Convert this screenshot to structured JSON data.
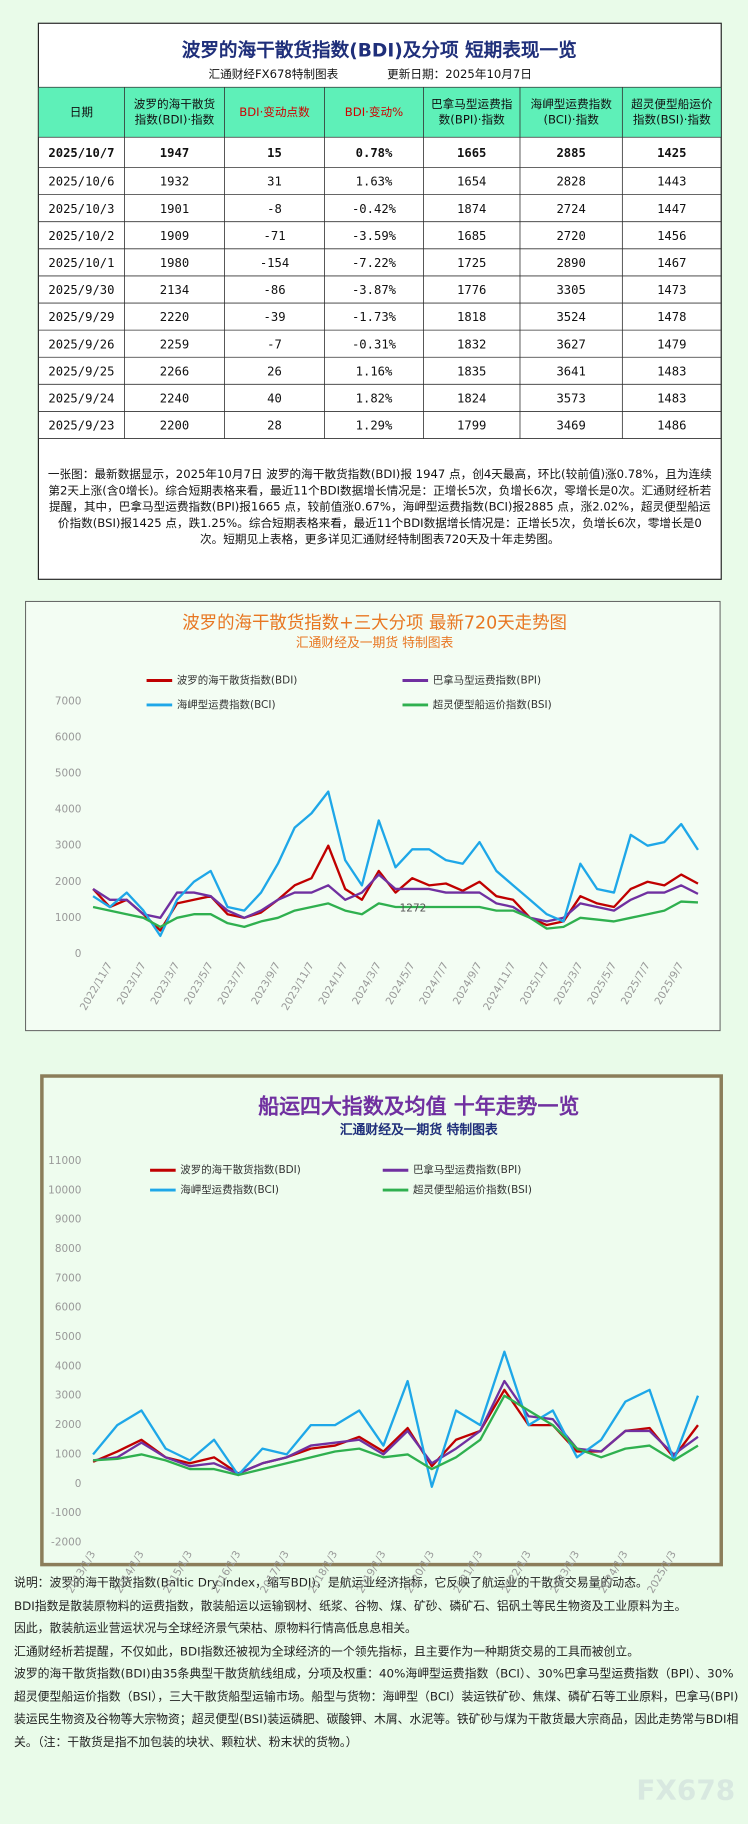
{
  "table": {
    "title": "波罗的海干散货指数(BDI)及分项 短期表现一览",
    "source": "汇通财经FX678特制图表",
    "date": "更新日期：2025年10月7日",
    "header": [
      [
        "日期"
      ],
      [
        "波罗的海干散货",
        "指数(BDI)·指数"
      ],
      [
        "BDI·变动点数"
      ],
      [
        "BDI·变动%"
      ],
      [
        "巴拿马型运费指",
        "数(BPI)·指数"
      ],
      [
        "海岬型运费指数",
        "(BCI)·指数"
      ],
      [
        "超灵便型船运价",
        "指数(BSI)·指数"
      ]
    ],
    "rows": [
      [
        "2025/10/7",
        "1947",
        "15",
        "0.78%",
        "1665",
        "2885",
        "1425"
      ],
      [
        "2025/10/6",
        "1932",
        "31",
        "1.63%",
        "1654",
        "2828",
        "1443"
      ],
      [
        "2025/10/3",
        "1901",
        "-8",
        "-0.42%",
        "1874",
        "2724",
        "1447"
      ],
      [
        "2025/10/2",
        "1909",
        "-71",
        "-3.59%",
        "1685",
        "2720",
        "1456"
      ],
      [
        "2025/10/1",
        "1980",
        "-154",
        "-7.22%",
        "1725",
        "2890",
        "1467"
      ],
      [
        "2025/9/30",
        "2134",
        "-86",
        "-3.87%",
        "1776",
        "3305",
        "1473"
      ],
      [
        "2025/9/29",
        "2220",
        "-39",
        "-1.73%",
        "1818",
        "3524",
        "1478"
      ],
      [
        "2025/9/26",
        "2259",
        "-7",
        "-0.31%",
        "1832",
        "3627",
        "1479"
      ],
      [
        "2025/9/25",
        "2266",
        "26",
        "1.16%",
        "1835",
        "3641",
        "1483"
      ],
      [
        "2025/9/24",
        "2240",
        "40",
        "1.82%",
        "1824",
        "3573",
        "1483"
      ],
      [
        "2025/9/23",
        "2200",
        "28",
        "1.29%",
        "1799",
        "3469",
        "1486"
      ]
    ]
  },
  "summary": "一张图：最新数据显示，2025年10月7日 波罗的海干散货指数(BDI)报 1947 点，创4天最高，环比(较前值)涨0.78%，且为连续第2天上涨(含0增长)。综合短期表格来看，最近11个BDI数据增长情况是：正增长5次，负增长6次，零增长是0次。汇通财经析若提醒，其中，巴拿马型运费指数(BPI)报1665 点，较前值涨0.67%，海岬型运费指数(BCI)报2885 点，涨2.02%，超灵便型船运价指数(BSI)报1425 点，跌1.25%。综合短期表格来看，最近11个BDI数据增长情况是：正增长5次，负增长6次，零增长是0次。短期见上表格，更多详见汇通财经特制图表720天及十年走势图。",
  "chart_data": [
    {
      "type": "line",
      "title": "波罗的海干散货指数+三大分项  最新720天走势图",
      "subtitle": "汇通财经及一期货  特制图表",
      "categories": [
        null,
        "2022/11/7",
        null,
        "2023/1/7",
        null,
        "2023/3/7",
        null,
        "2023/5/7",
        null,
        "2023/7/7",
        null,
        "2023/9/7",
        null,
        "2023/11/7",
        null,
        "2024/1/7",
        null,
        "2024/3/7",
        null,
        "2024/5/7",
        null,
        "2024/7/7",
        null,
        "2024/9/7",
        null,
        "2024/11/7",
        null,
        "2025/1/7",
        null,
        "2025/3/7",
        null,
        "2025/5/7",
        null,
        "2025/7/7",
        null,
        "2025/9/7",
        null
      ],
      "ylim": [
        0,
        7000
      ],
      "yticks": [
        0,
        1000,
        2000,
        3000,
        4000,
        5000,
        6000,
        7000
      ],
      "annotation": "1272",
      "series": [
        {
          "name": "波罗的海干散货指数(BDI)",
          "color": "#c00000",
          "values": [
            1800,
            1300,
            1500,
            1100,
            650,
            1400,
            1500,
            1600,
            1100,
            1000,
            1150,
            1500,
            1900,
            2100,
            3000,
            1800,
            1500,
            2300,
            1700,
            2100,
            1900,
            1950,
            1750,
            2000,
            1600,
            1500,
            1000,
            800,
            900,
            1600,
            1400,
            1300,
            1800,
            2000,
            1900,
            2200,
            1947
          ]
        },
        {
          "name": "巴拿马型运费指数(BPI)",
          "color": "#7030a0",
          "values": [
            1800,
            1500,
            1500,
            1100,
            1000,
            1700,
            1700,
            1600,
            1200,
            1000,
            1200,
            1500,
            1700,
            1700,
            1900,
            1500,
            1700,
            2200,
            1800,
            1800,
            1800,
            1700,
            1700,
            1700,
            1400,
            1300,
            1000,
            900,
            1000,
            1400,
            1300,
            1200,
            1500,
            1700,
            1700,
            1900,
            1665
          ]
        },
        {
          "name": "海岬型运费指数(BCI)",
          "color": "#1ea7e8",
          "values": [
            1600,
            1300,
            1700,
            1200,
            500,
            1500,
            2000,
            2300,
            1300,
            1200,
            1700,
            2500,
            3500,
            3900,
            4500,
            2600,
            1900,
            3700,
            2400,
            2900,
            2900,
            2600,
            2500,
            3100,
            2300,
            1900,
            1500,
            1100,
            900,
            2500,
            1800,
            1700,
            3300,
            3000,
            3100,
            3600,
            2885
          ]
        },
        {
          "name": "超灵便型船运价指数(BSI)",
          "color": "#2fb04f",
          "values": [
            1300,
            1200,
            1100,
            1000,
            750,
            1000,
            1100,
            1100,
            850,
            750,
            900,
            1000,
            1200,
            1300,
            1400,
            1200,
            1100,
            1400,
            1300,
            1300,
            1300,
            1300,
            1300,
            1300,
            1200,
            1200,
            1000,
            700,
            750,
            1000,
            950,
            900,
            1000,
            1100,
            1200,
            1450,
            1425
          ]
        }
      ]
    },
    {
      "type": "line",
      "title": "船运四大指数及均值 十年走势一览",
      "subtitle": "汇通财经及一期货 特制图表",
      "categories": [
        "2013/1/3",
        null,
        "2014/1/3",
        null,
        "2015/1/3",
        null,
        "2016/1/3",
        null,
        "2017/1/3",
        null,
        "2018/1/3",
        null,
        "2019/1/3",
        null,
        "2020/1/3",
        null,
        "2021/1/3",
        null,
        "2022/1/3",
        null,
        "2023/1/3",
        null,
        "2024/1/3",
        null,
        "2025/1/3",
        null
      ],
      "ylim": [
        -2000,
        11000
      ],
      "yticks": [
        -2000,
        -1000,
        0,
        1000,
        2000,
        3000,
        4000,
        5000,
        6000,
        7000,
        8000,
        9000,
        10000,
        11000
      ],
      "series": [
        {
          "name": "波罗的海干散货指数(BDI)",
          "color": "#c00000",
          "values": [
            750,
            1100,
            1500,
            900,
            700,
            900,
            350,
            700,
            900,
            1200,
            1300,
            1600,
            1100,
            1900,
            600,
            1500,
            1800,
            3200,
            2000,
            2000,
            1100,
            1100,
            1800,
            1900,
            900,
            2000
          ]
        },
        {
          "name": "巴拿马型运费指数(BPI)",
          "color": "#7030a0",
          "values": [
            800,
            900,
            1400,
            900,
            600,
            700,
            350,
            700,
            900,
            1300,
            1400,
            1500,
            1000,
            1800,
            700,
            1200,
            1800,
            3500,
            2300,
            2200,
            1200,
            1100,
            1800,
            1800,
            1000,
            1600
          ]
        },
        {
          "name": "海岬型运费指数(BCI)",
          "color": "#1ea7e8",
          "values": [
            1000,
            2000,
            2500,
            1200,
            800,
            1500,
            300,
            1200,
            1000,
            2000,
            2000,
            2500,
            1300,
            3500,
            -100,
            2500,
            2000,
            4500,
            2000,
            2500,
            900,
            1500,
            2800,
            3200,
            800,
            3000
          ]
        },
        {
          "name": "超灵便型船运价指数(BSI)",
          "color": "#2fb04f",
          "values": [
            800,
            850,
            1000,
            800,
            500,
            500,
            300,
            500,
            700,
            900,
            1100,
            1200,
            900,
            1000,
            500,
            900,
            1500,
            3000,
            2500,
            2000,
            1200,
            900,
            1200,
            1300,
            800,
            1300
          ]
        }
      ]
    }
  ],
  "notes": [
    "说明：波罗的海干散货指数(Baltic Dry Index，缩写BDI)，是航运业经济指标，它反映了航运业的干散货交易量的动态。",
    "BDI指数是散装原物料的运费指数，散装船运以运输钢材、纸浆、谷物、煤、矿砂、磷矿石、铝矾土等民生物资及工业原料为主。",
    "因此，散装航运业营运状况与全球经济景气荣枯、原物料行情高低息息相关。",
    "汇通财经析若提醒，不仅如此，BDI指数还被视为全球经济的一个领先指标，且主要作为一种期货交易的工具而被创立。",
    "波罗的海干散货指数(BDI)由35条典型干散货航线组成，分项及权重：40%海岬型运费指数（BCI）、30%巴拿马型运费指数（BPI）、30%超灵便型船运价指数（BSI），三大干散货船型运输市场。船型与货物：海岬型（BCI）装运铁矿砂、焦煤、磷矿石等工业原料，巴拿马(BPI)装运民生物资及谷物等大宗物资；超灵便型(BSI)装运磷肥、碳酸钾、木屑、水泥等。铁矿砂与煤为干散货最大宗商品，因此走势常与BDI相关。（注：干散货是指不加包装的块状、颗粒状、粉末状的货物。）"
  ],
  "watermark": "FX678"
}
